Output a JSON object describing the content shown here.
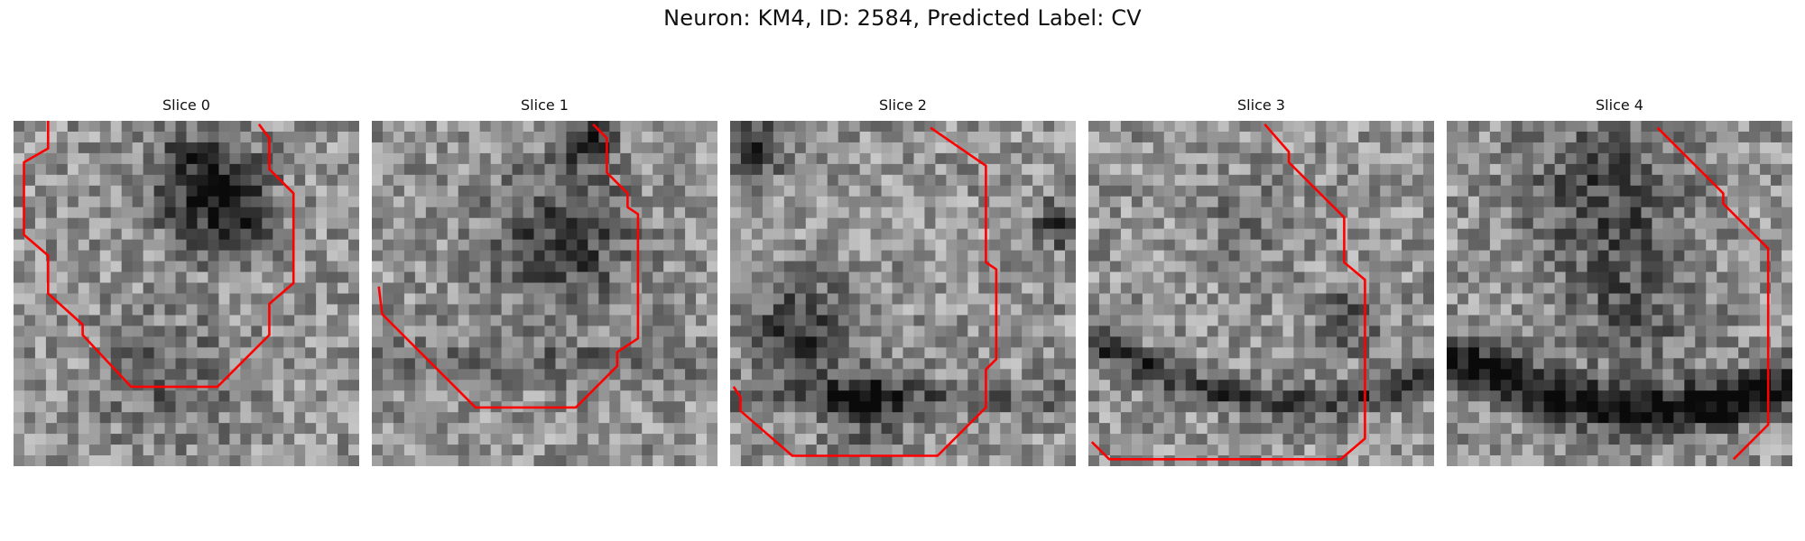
{
  "figure": {
    "title": "Neuron: KM4, ID: 2584, Predicted Label: CV"
  },
  "style": {
    "contour_color": "#ff0000",
    "colormap": "grayscale"
  },
  "slices": [
    {
      "label": "Slice 0"
    },
    {
      "label": "Slice 1"
    },
    {
      "label": "Slice 2"
    },
    {
      "label": "Slice 3"
    },
    {
      "label": "Slice 4"
    }
  ]
}
